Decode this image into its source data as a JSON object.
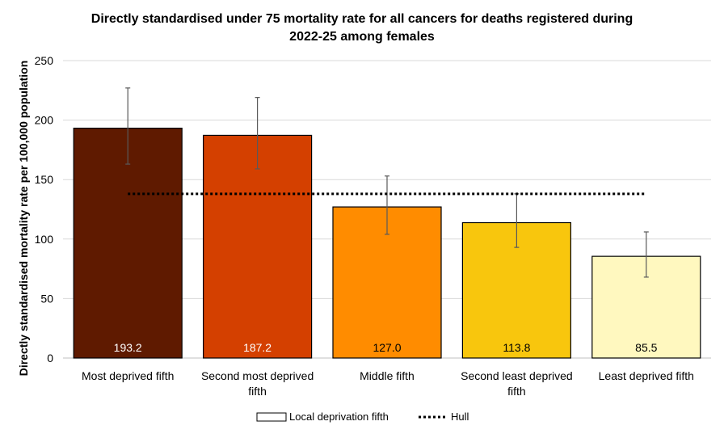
{
  "chart_data": {
    "type": "bar",
    "title": "Directly standardised under 75 mortality rate for all cancers for deaths registered during 2022-25 among females",
    "title_lines": [
      "Directly standardised under 75 mortality rate for all cancers for deaths registered during",
      "2022-25 among females"
    ],
    "ylabel": "Directly standardised mortality rate per 100,000 population",
    "xlabel": "",
    "ylim": [
      0,
      250
    ],
    "yticks": [
      "0",
      "50",
      "100",
      "150",
      "200",
      "250"
    ],
    "grid": true,
    "categories": [
      "Most deprived fifth",
      "Second most deprived fifth",
      "Middle fifth",
      "Second least deprived fifth",
      "Least deprived fifth"
    ],
    "category_lines": [
      [
        "Most deprived fifth"
      ],
      [
        "Second most deprived",
        "fifth"
      ],
      [
        "Middle fifth"
      ],
      [
        "Second least deprived",
        "fifth"
      ],
      [
        "Least deprived fifth"
      ]
    ],
    "series": [
      {
        "name": "Local deprivation fifth",
        "values": [
          193.2,
          187.2,
          127.0,
          113.8,
          85.5
        ],
        "value_labels": [
          "193.2",
          "187.2",
          "127.0",
          "113.8",
          "85.5"
        ],
        "ci_lower": [
          163,
          159,
          104,
          93,
          68
        ],
        "ci_upper": [
          227,
          219,
          153,
          138,
          106
        ],
        "colors": [
          "#5f1a00",
          "#d44000",
          "#ff8c00",
          "#f8c60d",
          "#fff8bf"
        ],
        "label_colors": [
          "#ffffff",
          "#ffffff",
          "#000000",
          "#000000",
          "#000000"
        ]
      },
      {
        "name": "Hull",
        "type": "line",
        "style": "dotted",
        "value": 138
      }
    ],
    "legend_position": "bottom"
  }
}
